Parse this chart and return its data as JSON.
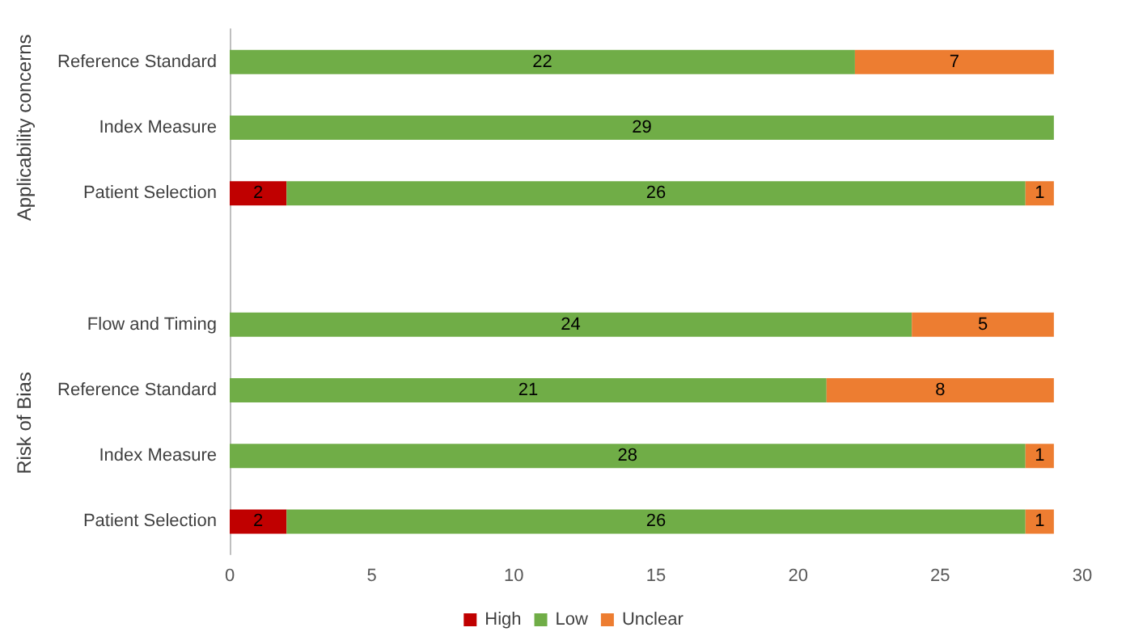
{
  "chart_data": {
    "type": "bar",
    "orientation": "horizontal",
    "stacked": true,
    "categories": [
      "Reference Standard",
      "Index Measure",
      "Patient Selection",
      null,
      "Flow and Timing",
      "Reference Standard",
      "Index Measure",
      "Patient Selection"
    ],
    "series": [
      {
        "name": "High",
        "color": "#c00000",
        "values": [
          null,
          null,
          2,
          null,
          null,
          null,
          null,
          2
        ]
      },
      {
        "name": "Low",
        "color": "#70ad47",
        "values": [
          22,
          29,
          26,
          null,
          24,
          21,
          28,
          26
        ]
      },
      {
        "name": "Unclear",
        "color": "#ed7d31",
        "values": [
          7,
          null,
          1,
          null,
          5,
          8,
          1,
          1
        ]
      }
    ],
    "xlim": [
      0,
      30
    ],
    "xticks": [
      0,
      5,
      10,
      15,
      20,
      25,
      30
    ],
    "annotations": [
      "Applicability concerns",
      "Risk of Bias"
    ],
    "data_labels": true,
    "legend": "bottom",
    "grid": false
  }
}
